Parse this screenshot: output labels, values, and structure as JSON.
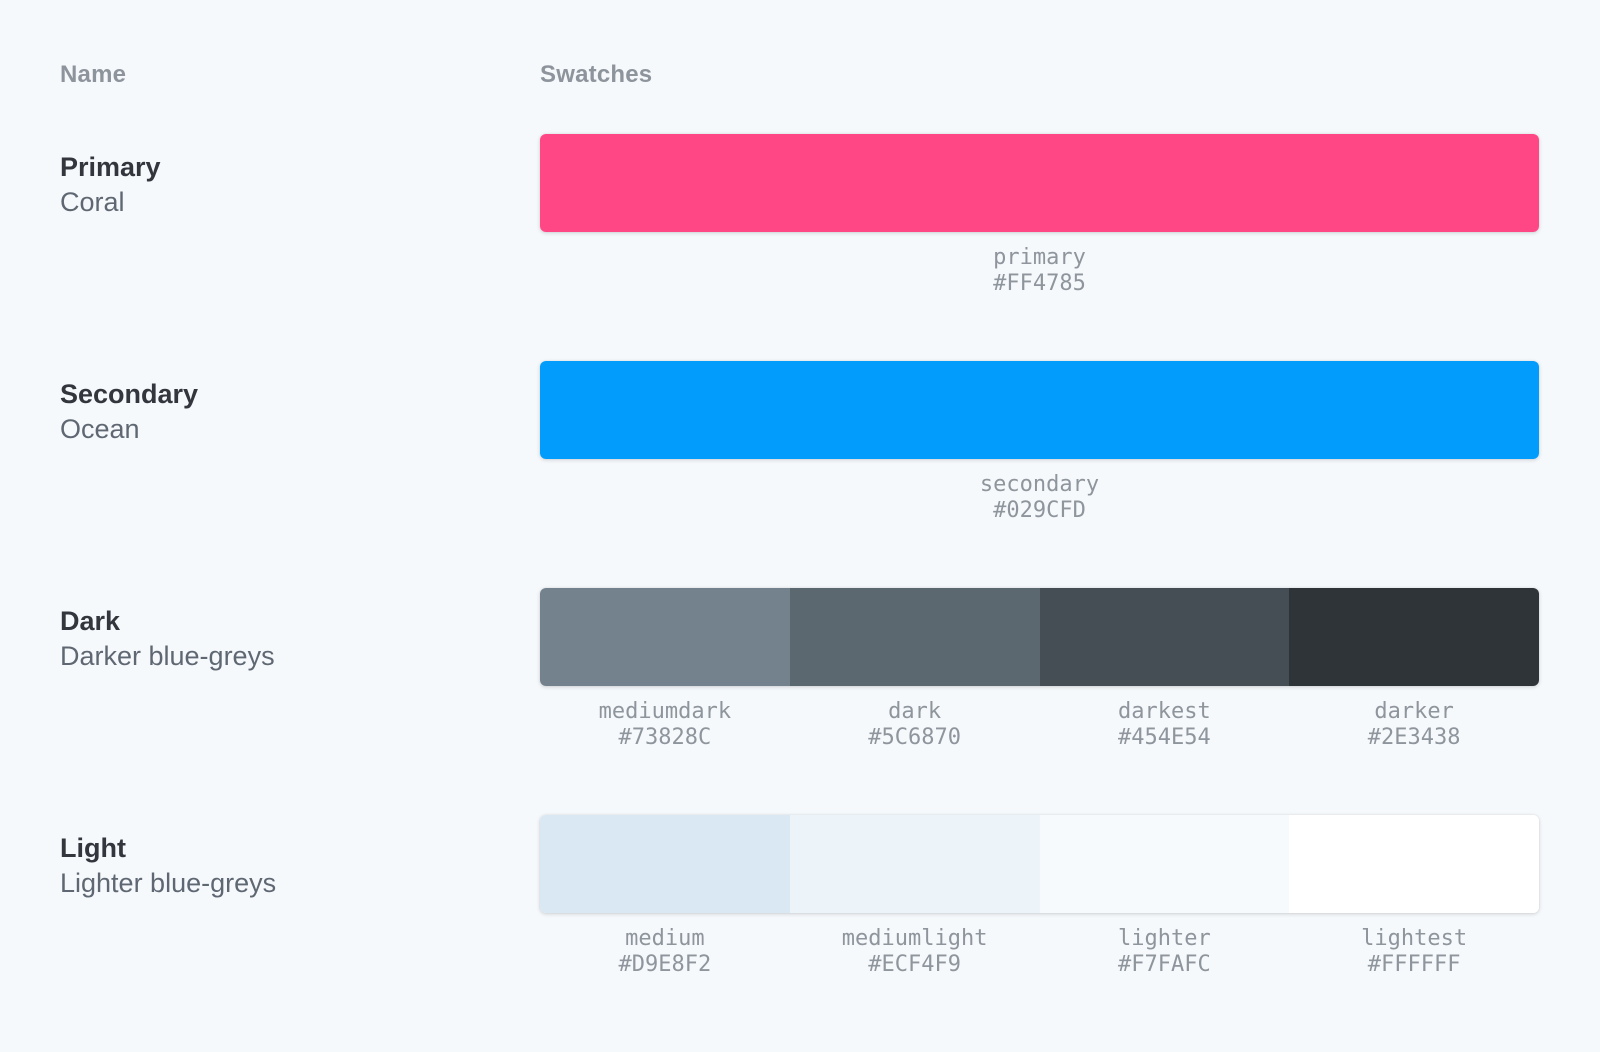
{
  "theme": {
    "page_background": "#F6F9FC",
    "header_text_color": "#8D949C",
    "title_text_color": "#33373D",
    "subtitle_text_color": "#5F6872",
    "label_text_color": "#8E959C"
  },
  "palette": {
    "headers": {
      "name": "Name",
      "swatches": "Swatches"
    },
    "rows": [
      {
        "title": "Primary",
        "subtitle": "Coral",
        "colors": [
          {
            "name": "primary",
            "hex": "#FF4785"
          }
        ]
      },
      {
        "title": "Secondary",
        "subtitle": "Ocean",
        "colors": [
          {
            "name": "secondary",
            "hex": "#029CFD"
          }
        ]
      },
      {
        "title": "Dark",
        "subtitle": "Darker blue-greys",
        "colors": [
          {
            "name": "mediumdark",
            "hex": "#73828C"
          },
          {
            "name": "dark",
            "hex": "#5C6870"
          },
          {
            "name": "darkest",
            "hex": "#454E54"
          },
          {
            "name": "darker",
            "hex": "#2E3438"
          }
        ]
      },
      {
        "title": "Light",
        "subtitle": "Lighter blue-greys",
        "colors": [
          {
            "name": "medium",
            "hex": "#D9E8F2"
          },
          {
            "name": "mediumlight",
            "hex": "#ECF4F9"
          },
          {
            "name": "lighter",
            "hex": "#F7FAFC"
          },
          {
            "name": "lightest",
            "hex": "#FFFFFF"
          }
        ]
      }
    ]
  }
}
